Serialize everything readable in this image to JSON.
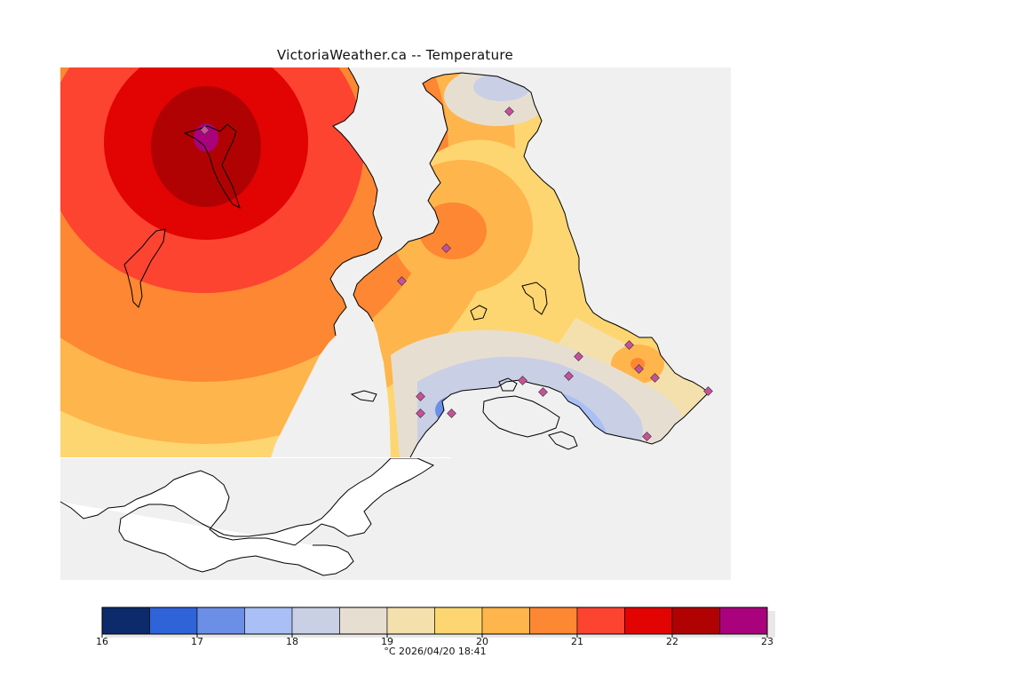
{
  "title": "VictoriaWeather.ca -- Temperature",
  "caption": "°C  2026/04/20 18:41",
  "legend": {
    "ticks": [
      "16",
      "17",
      "18",
      "19",
      "20",
      "21",
      "22",
      "23"
    ],
    "bins": [
      {
        "from": 16.0,
        "to": 16.5,
        "color": "#0d2a6a"
      },
      {
        "from": 16.5,
        "to": 17.0,
        "color": "#2f63d8"
      },
      {
        "from": 17.0,
        "to": 17.5,
        "color": "#6b8fe6"
      },
      {
        "from": 17.5,
        "to": 18.0,
        "color": "#a9bff5"
      },
      {
        "from": 18.0,
        "to": 18.5,
        "color": "#c9cfe4"
      },
      {
        "from": 18.5,
        "to": 19.0,
        "color": "#e7ded2"
      },
      {
        "from": 19.0,
        "to": 19.5,
        "color": "#f3e0ac"
      },
      {
        "from": 19.5,
        "to": 20.0,
        "color": "#fdd672"
      },
      {
        "from": 20.0,
        "to": 20.5,
        "color": "#feb54c"
      },
      {
        "from": 20.5,
        "to": 21.0,
        "color": "#fd8732"
      },
      {
        "from": 21.0,
        "to": 21.5,
        "color": "#fc4431"
      },
      {
        "from": 21.5,
        "to": 22.0,
        "color": "#e20303"
      },
      {
        "from": 22.0,
        "to": 22.5,
        "color": "#b00202"
      },
      {
        "from": 22.5,
        "to": 23.0,
        "color": "#a9027c"
      }
    ]
  },
  "map": {
    "water_color": "#f0f0f0",
    "coast_color": "#000000",
    "station_color": "#c8509a"
  }
}
